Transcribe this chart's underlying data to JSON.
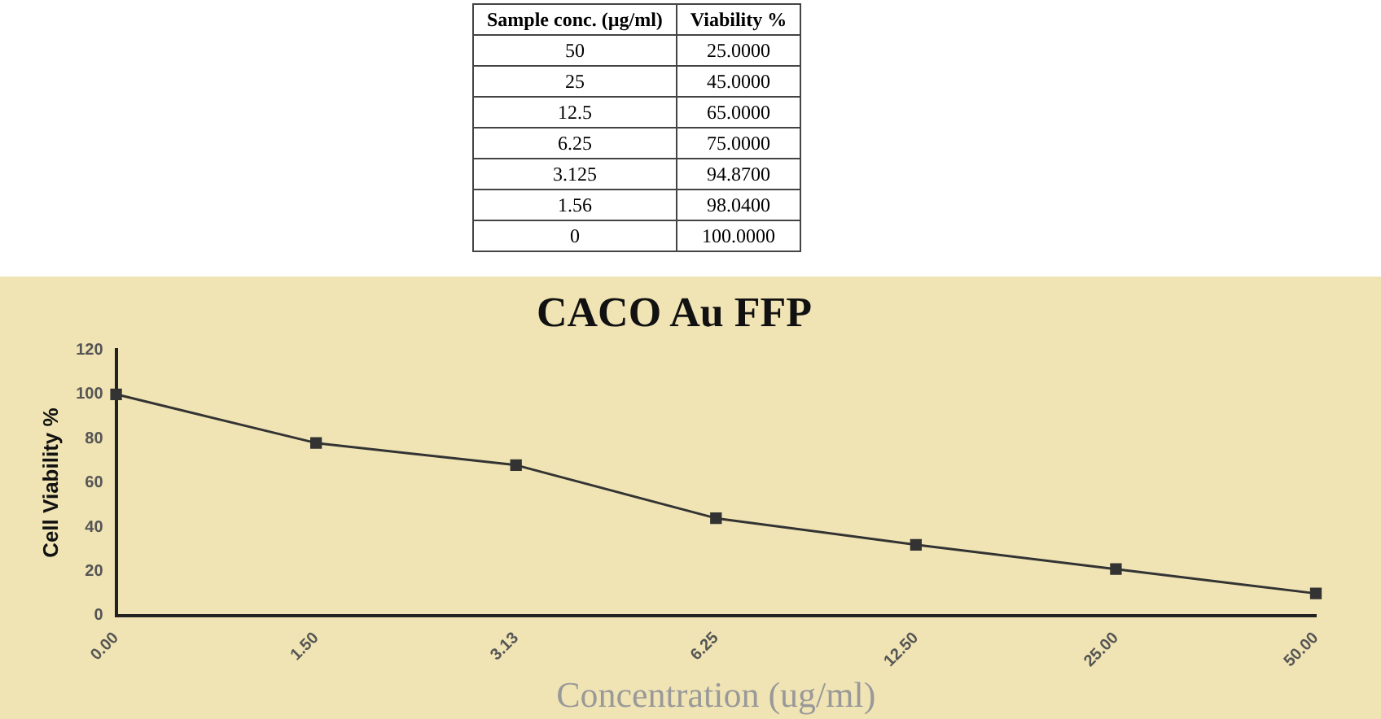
{
  "chart_data": [
    {
      "type": "other",
      "annotations": [
        "Sample conc. (µg/ml)",
        "Viability %",
        "50",
        "25.0000",
        "25",
        "45.0000",
        "12.5",
        "65.0000",
        "6.25",
        "75.0000",
        "3.125",
        "94.8700",
        "1.56",
        "98.0400",
        "0",
        "100.0000"
      ]
    },
    {
      "type": "line",
      "title": "CACO Au FFP",
      "xlabel": "Concentration (ug/ml)",
      "ylabel": "Cell Viability %",
      "categories": [
        "0.00",
        "1.50",
        "3.13",
        "6.25",
        "12.50",
        "25.00",
        "50.00"
      ],
      "series": [
        {
          "color": "#333333",
          "values": [
            100,
            78,
            68,
            44,
            32,
            21,
            10
          ]
        }
      ],
      "ylim": [
        0,
        120
      ],
      "yticks": [
        0,
        20,
        40,
        60,
        80,
        100,
        120
      ],
      "grid": false,
      "legend": false,
      "marker": "square",
      "line_style": "solid"
    }
  ]
}
